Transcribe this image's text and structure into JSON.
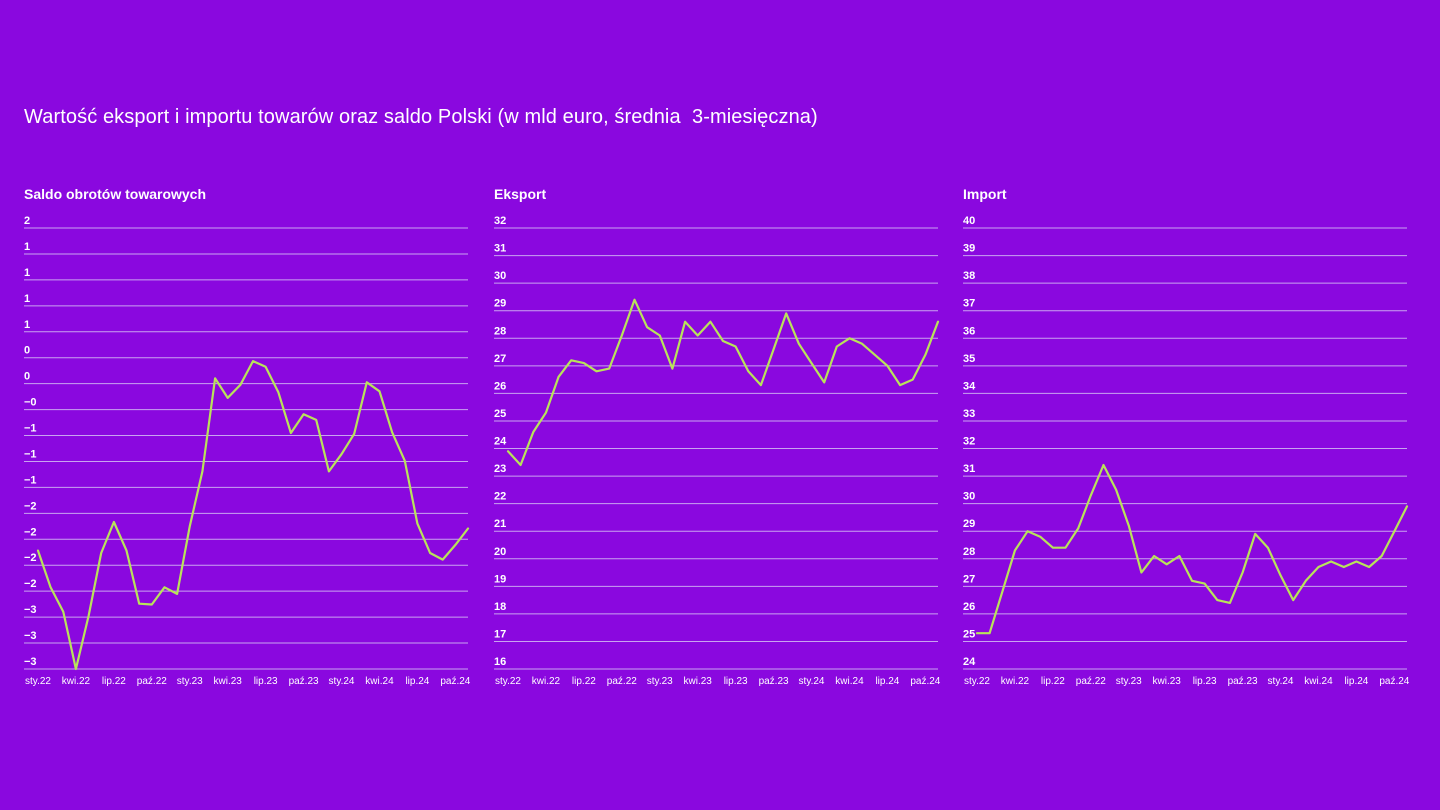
{
  "title": "Wartość eksport i importu towarów oraz saldo Polski (w mld euro, średnia  3-miesięczna)",
  "colors": {
    "background": "#8a08df",
    "line": "#b9e35a",
    "grid": "#c9a3f0",
    "text": "#ffffff"
  },
  "chart_data": [
    {
      "type": "line",
      "title": "Saldo obrotów towarowych",
      "x_tick_labels": [
        "sty.22",
        "kwi.22",
        "lip.22",
        "paź.22",
        "sty.23",
        "kwi.23",
        "lip.23",
        "paź.23",
        "sty.24",
        "kwi.24",
        "lip.24",
        "paź.24"
      ],
      "y_tick_labels": [
        "2",
        "1",
        "1",
        "1",
        "1",
        "0",
        "0",
        "−0",
        "−1",
        "−1",
        "−1",
        "−2",
        "−2",
        "−2",
        "−2",
        "−3",
        "−3",
        "−3"
      ],
      "ylim": [
        -3.2,
        2.2
      ],
      "grid": true,
      "series": [
        {
          "values": [
            -1.75,
            -2.2,
            -2.5,
            -3.2,
            -2.55,
            -1.78,
            -1.4,
            -1.75,
            -2.4,
            -2.41,
            -2.2,
            -2.28,
            -1.45,
            -0.78,
            0.36,
            0.12,
            0.28,
            0.57,
            0.5,
            0.19,
            -0.31,
            -0.08,
            -0.15,
            -0.78,
            -0.57,
            -0.32,
            0.31,
            0.2,
            -0.3,
            -0.65,
            -1.42,
            -1.78,
            -1.86,
            -1.68,
            -1.48
          ]
        }
      ]
    },
    {
      "type": "line",
      "title": "Eksport",
      "x_tick_labels": [
        "sty.22",
        "kwi.22",
        "lip.22",
        "paź.22",
        "sty.23",
        "kwi.23",
        "lip.23",
        "paź.23",
        "sty.24",
        "kwi.24",
        "lip.24",
        "paź.24"
      ],
      "y_tick_labels": [
        "32",
        "31",
        "30",
        "29",
        "28",
        "27",
        "26",
        "25",
        "24",
        "23",
        "22",
        "21",
        "20",
        "19",
        "18",
        "17",
        "16"
      ],
      "ylim": [
        16,
        32
      ],
      "grid": true,
      "series": [
        {
          "values": [
            23.9,
            23.4,
            24.6,
            25.3,
            26.6,
            27.2,
            27.1,
            26.8,
            26.9,
            28.1,
            29.4,
            28.4,
            28.1,
            26.9,
            28.6,
            28.1,
            28.6,
            27.9,
            27.7,
            26.8,
            26.3,
            27.6,
            28.9,
            27.8,
            27.1,
            26.4,
            27.7,
            28.0,
            27.8,
            27.4,
            27.0,
            26.3,
            26.5,
            27.4,
            28.6
          ]
        }
      ]
    },
    {
      "type": "line",
      "title": "Import",
      "x_tick_labels": [
        "sty.22",
        "kwi.22",
        "lip.22",
        "paź.22",
        "sty.23",
        "kwi.23",
        "lip.23",
        "paź.23",
        "sty.24",
        "kwi.24",
        "lip.24",
        "paź.24"
      ],
      "y_tick_labels": [
        "40",
        "39",
        "38",
        "37",
        "36",
        "35",
        "34",
        "33",
        "32",
        "31",
        "30",
        "29",
        "28",
        "27",
        "26",
        "25",
        "24"
      ],
      "ylim": [
        24,
        40
      ],
      "grid": true,
      "series": [
        {
          "values": [
            25.3,
            25.3,
            26.8,
            28.3,
            29.0,
            28.8,
            28.4,
            28.4,
            29.1,
            30.3,
            31.4,
            30.5,
            29.2,
            27.5,
            28.1,
            27.8,
            28.1,
            27.2,
            27.1,
            26.5,
            26.4,
            27.5,
            28.9,
            28.4,
            27.4,
            26.5,
            27.2,
            27.7,
            27.9,
            27.7,
            27.9,
            27.7,
            28.1,
            29.0,
            29.9
          ]
        }
      ]
    }
  ]
}
